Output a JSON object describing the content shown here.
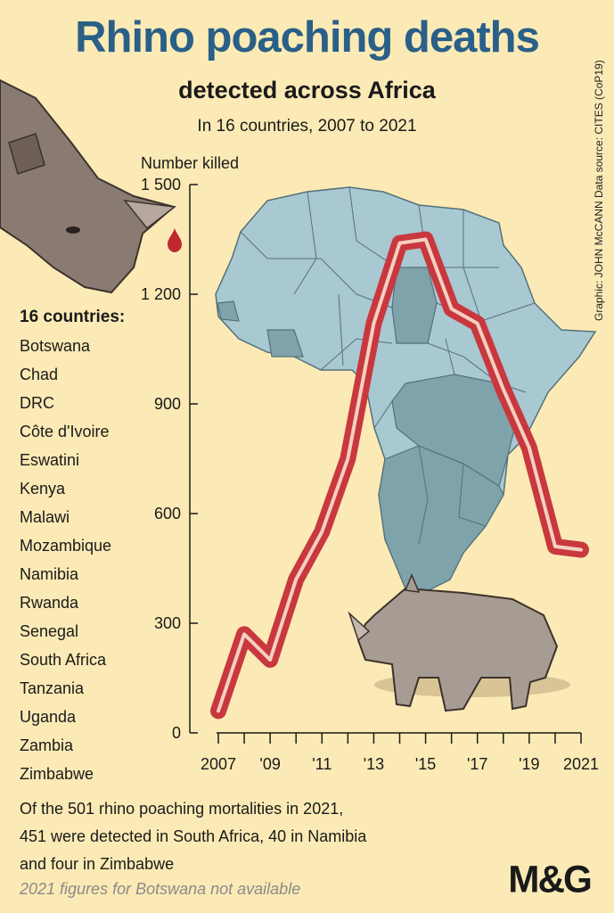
{
  "header": {
    "title": "Rhino poaching deaths",
    "subtitle": "detected across Africa",
    "subsubtitle": "In 16 countries, 2007 to 2021",
    "credit": "Graphic: JOHN McCANN  Data source: CITES (CoP19)"
  },
  "countries": {
    "heading": "16 countries:",
    "items": [
      "Botswana",
      "Chad",
      "DRC",
      "Côte d'Ivoire",
      "Eswatini",
      "Kenya",
      "Malawi",
      "Mozambique",
      "Namibia",
      "Rwanda",
      "Senegal",
      "South Africa",
      "Tanzania",
      "Uganda",
      "Zambia",
      "Zimbabwe"
    ]
  },
  "note": {
    "line1": "Of the 501 rhino poaching mortalities in 2021,",
    "line2": "451 were detected in South Africa, 40 in Namibia",
    "line3": "and four in Zimbabwe",
    "footnote": "2021 figures for Botswana not available"
  },
  "logo": {
    "text": "M&G"
  },
  "colors": {
    "title": "#2a5f87",
    "line": "#c8383e",
    "line_inner": "#f4d0c0",
    "background": "#fbeab5",
    "map_light": "#a8c8d2",
    "map_dark": "#7fa3ab"
  },
  "chart_data": {
    "type": "line",
    "title": "Rhino poaching deaths",
    "subtitle": "detected across Africa",
    "ylabel": "Number killed",
    "xlabel": "",
    "x": [
      2007,
      2008,
      2009,
      2010,
      2011,
      2012,
      2013,
      2014,
      2015,
      2016,
      2017,
      2018,
      2019,
      2020,
      2021
    ],
    "x_tick_labels": [
      "2007",
      "'09",
      "'11",
      "'13",
      "'15",
      "'17",
      "'19",
      "2021"
    ],
    "x_tick_values": [
      2007,
      2009,
      2011,
      2013,
      2015,
      2017,
      2019,
      2021
    ],
    "y_tick_labels": [
      "0",
      "300",
      "600",
      "900",
      "1 200",
      "1 500"
    ],
    "y_tick_values": [
      0,
      300,
      600,
      900,
      1200,
      1500
    ],
    "ylim": [
      0,
      1500
    ],
    "series": [
      {
        "values": [
          60,
          270,
          200,
          420,
          550,
          750,
          1120,
          1340,
          1350,
          1160,
          1120,
          940,
          780,
          510,
          501
        ]
      }
    ],
    "grid": false
  }
}
